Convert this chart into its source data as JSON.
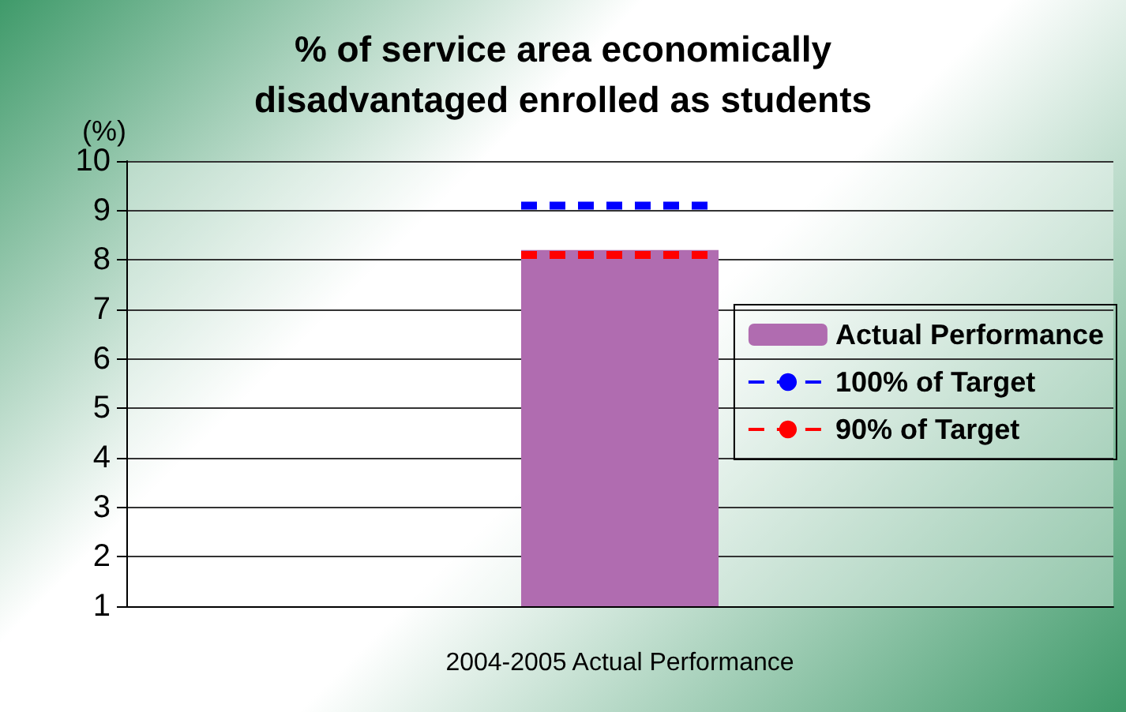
{
  "chart_data": {
    "type": "bar",
    "title": "% of service area economically\ndisadvantaged enrolled as students",
    "ylabel": "(%)",
    "categories": [
      "2004-2005 Actual Performance"
    ],
    "series": [
      {
        "name": "Actual Performance",
        "color": "#b06cb0",
        "values": [
          8.2
        ]
      }
    ],
    "ylim": [
      1,
      10
    ],
    "yticks": [
      1,
      2,
      3,
      4,
      5,
      6,
      7,
      8,
      9,
      10
    ],
    "grid": "y",
    "legend": "right",
    "ref_lines": [
      {
        "axis": "y",
        "value": 9.1,
        "label": "100% of Target",
        "color": "#0000ff",
        "line_style": "dashed"
      },
      {
        "axis": "y",
        "value": 8.1,
        "label": "90% of Target",
        "color": "#ff0000",
        "line_style": "dashed"
      }
    ]
  }
}
